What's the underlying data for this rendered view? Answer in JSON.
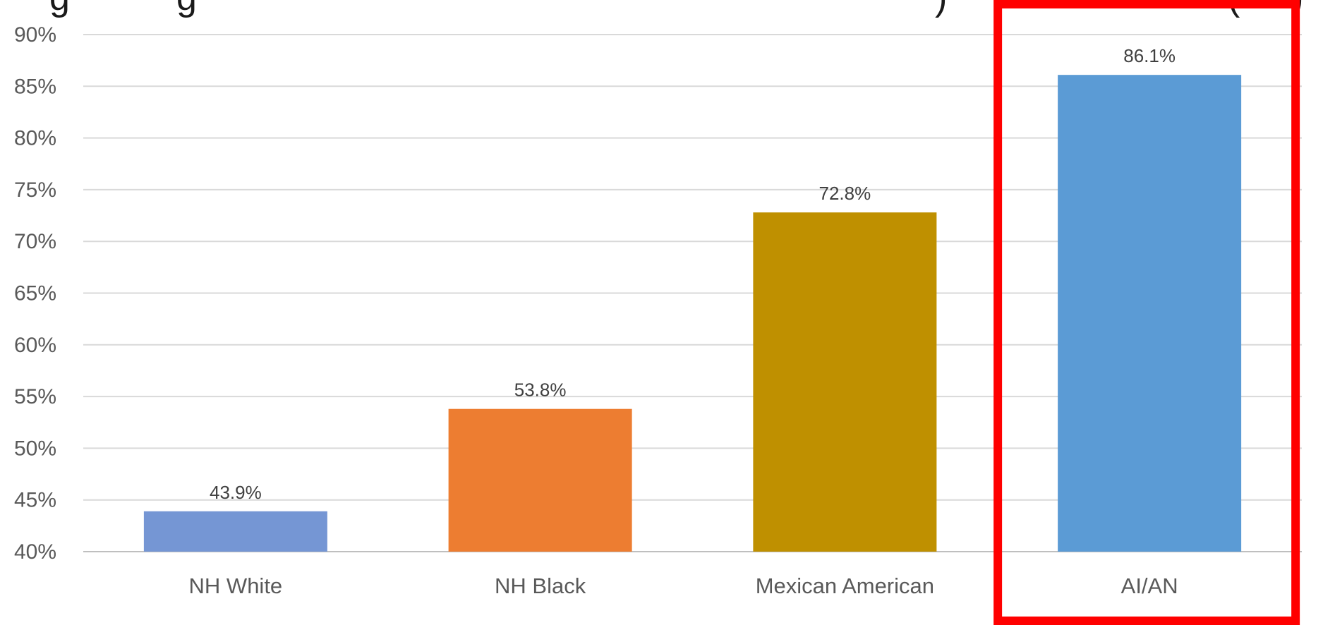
{
  "chart_data": {
    "type": "bar",
    "title_fragments": [
      "g",
      "g",
      ")",
      "(",
      ")"
    ],
    "categories": [
      "NH White",
      "NH Black",
      "Mexican American",
      "AI/AN"
    ],
    "values": [
      43.9,
      53.8,
      72.8,
      86.1
    ],
    "value_labels": [
      "43.9%",
      "53.8%",
      "72.8%",
      "86.1%"
    ],
    "colors": [
      "#7596D4",
      "#ED7D31",
      "#BF9000",
      "#5B9BD5"
    ],
    "ylim": [
      40,
      90
    ],
    "y_ticks": [
      90,
      85,
      80,
      75,
      70,
      65,
      60,
      55,
      50,
      45,
      40
    ],
    "y_tick_labels": [
      "90%",
      "85%",
      "80%",
      "75%",
      "70%",
      "65%",
      "60%",
      "55%",
      "50%",
      "45%",
      "40%"
    ],
    "grid": true,
    "highlight_category": "AI/AN",
    "highlight_color": "#FF0000"
  }
}
